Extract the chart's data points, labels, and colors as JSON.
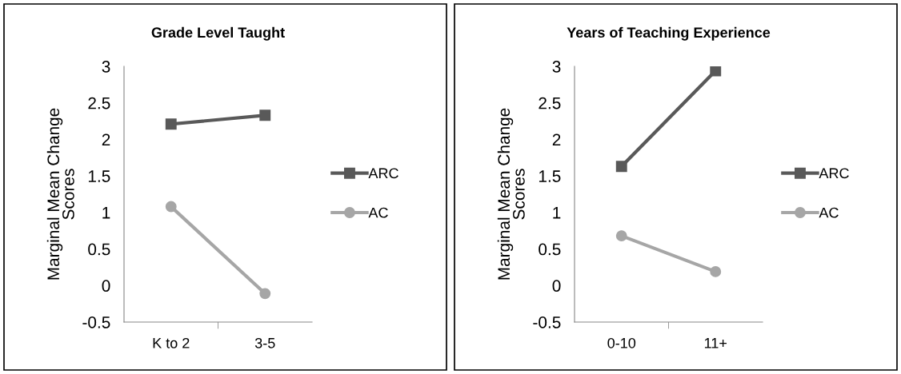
{
  "chart_data": [
    {
      "type": "line",
      "title": "Grade Level Taught",
      "ylabel": "Marginal Mean Change\nScores",
      "categories": [
        "K to 2",
        "3-5"
      ],
      "series": [
        {
          "name": "ARC",
          "color": "#595959",
          "values": [
            2.21,
            2.33
          ],
          "marker": "square"
        },
        {
          "name": "AC",
          "color": "#a6a6a6",
          "values": [
            1.08,
            -0.11
          ],
          "marker": "circle"
        }
      ],
      "ylim": [
        -0.5,
        3
      ],
      "yticks": [
        -0.5,
        0,
        0.5,
        1,
        1.5,
        2,
        2.5,
        3
      ],
      "grid": false,
      "legend": "right",
      "line_style": "solid"
    },
    {
      "type": "line",
      "title": "Years of Teaching Experience",
      "ylabel": "Marginal Mean Change\nScores",
      "categories": [
        "0-10",
        "11+"
      ],
      "series": [
        {
          "name": "ARC",
          "color": "#595959",
          "values": [
            1.63,
            2.94
          ],
          "marker": "square"
        },
        {
          "name": "AC",
          "color": "#a6a6a6",
          "values": [
            0.68,
            0.19
          ],
          "marker": "circle"
        }
      ],
      "ylim": [
        -0.5,
        3
      ],
      "yticks": [
        -0.5,
        0,
        0.5,
        1,
        1.5,
        2,
        2.5,
        3
      ],
      "grid": false,
      "legend": "right",
      "line_style": "solid"
    }
  ]
}
